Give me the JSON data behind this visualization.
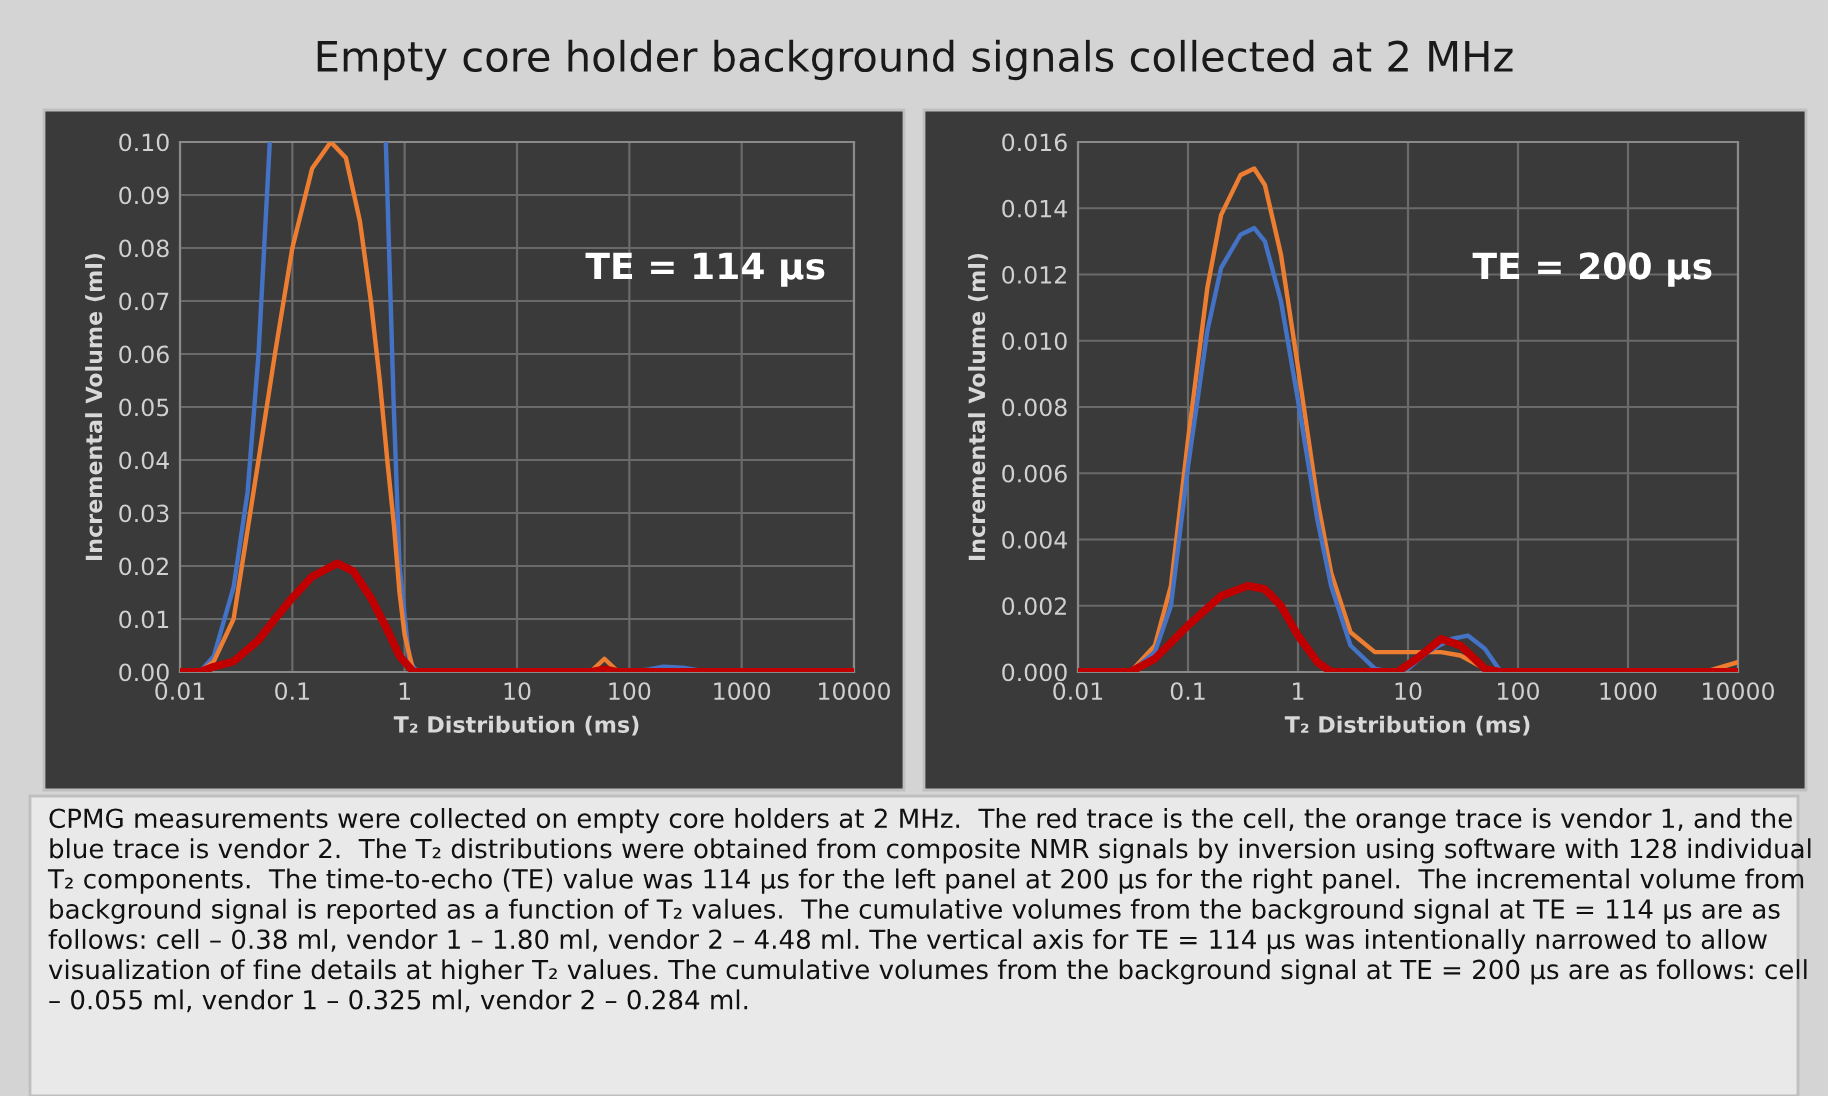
{
  "chart_data": [
    {
      "type": "line",
      "title": "Empty core holder background signals collected at 2 MHz",
      "xlabel": "T₂ Distribution (ms)",
      "ylabel": "Incremental Volume (ml)",
      "log": "x",
      "grid": true,
      "marker": "none",
      "line_style": "solid",
      "xlim": [
        0.01,
        10000
      ],
      "xticks": [
        0.01,
        0.1,
        1,
        10,
        100,
        1000,
        10000
      ],
      "ylim": [
        0,
        0.1
      ],
      "yticks": [
        {
          "value": 0,
          "label": "0.00"
        },
        {
          "value": 0.01,
          "label": "0.01"
        },
        {
          "value": 0.02,
          "label": "0.02"
        },
        {
          "value": 0.03,
          "label": "0.03"
        },
        {
          "value": 0.04,
          "label": "0.04"
        },
        {
          "value": 0.05,
          "label": "0.05"
        },
        {
          "value": 0.06,
          "label": "0.06"
        },
        {
          "value": 0.07,
          "label": "0.07"
        },
        {
          "value": 0.08,
          "label": "0.08"
        },
        {
          "value": 0.09,
          "label": "0.09"
        },
        {
          "value": 0.1,
          "label": "0.10"
        }
      ],
      "annotations": [
        "TE = 114 μs"
      ],
      "series": [
        {
          "color": "#4472c4",
          "x": [
            0.01,
            0.015,
            0.02,
            0.03,
            0.04,
            0.05,
            0.063,
            0.2,
            0.68,
            0.8,
            0.9,
            1.1,
            1.3,
            10,
            100,
            150,
            200,
            300,
            500,
            10000
          ],
          "values": [
            0,
            0,
            0.003,
            0.016,
            0.034,
            0.06,
            0.1,
            null,
            0.1,
            0.05,
            0.02,
            0.002,
            0,
            0,
            0,
            0.0005,
            0.001,
            0.0008,
            0,
            0
          ]
        },
        {
          "color": "#ed7d31",
          "x": [
            0.01,
            0.015,
            0.02,
            0.03,
            0.05,
            0.07,
            0.1,
            0.15,
            0.22,
            0.3,
            0.4,
            0.5,
            0.6,
            0.7,
            0.8,
            0.9,
            1.0,
            1.2,
            45,
            60,
            80,
            10000
          ],
          "values": [
            0,
            0,
            0.002,
            0.01,
            0.04,
            0.06,
            0.08,
            0.095,
            0.1,
            0.097,
            0.085,
            0.07,
            0.055,
            0.04,
            0.028,
            0.015,
            0.007,
            0,
            0,
            0.0025,
            0,
            0
          ]
        },
        {
          "color": "#c00000",
          "x": [
            0.01,
            0.015,
            0.02,
            0.03,
            0.05,
            0.07,
            0.1,
            0.15,
            0.25,
            0.35,
            0.5,
            0.7,
            0.9,
            1.2,
            45,
            60,
            80,
            10000
          ],
          "values": [
            0,
            0,
            0.001,
            0.002,
            0.006,
            0.01,
            0.014,
            0.018,
            0.0205,
            0.019,
            0.014,
            0.008,
            0.003,
            0,
            0,
            0.0005,
            0,
            0
          ]
        }
      ]
    },
    {
      "type": "line",
      "xlabel": "T₂ Distribution (ms)",
      "ylabel": "Incremental Volume (ml)",
      "log": "x",
      "grid": true,
      "marker": "none",
      "line_style": "solid",
      "xlim": [
        0.01,
        10000
      ],
      "xticks": [
        0.01,
        0.1,
        1,
        10,
        100,
        1000,
        10000
      ],
      "ylim": [
        0,
        0.016
      ],
      "yticks": [
        {
          "value": 0,
          "label": "0.000"
        },
        {
          "value": 0.002,
          "label": "0.002"
        },
        {
          "value": 0.004,
          "label": "0.004"
        },
        {
          "value": 0.006,
          "label": "0.006"
        },
        {
          "value": 0.008,
          "label": "0.008"
        },
        {
          "value": 0.01,
          "label": "0.010"
        },
        {
          "value": 0.012,
          "label": "0.012"
        },
        {
          "value": 0.014,
          "label": "0.014"
        },
        {
          "value": 0.016,
          "label": "0.016"
        }
      ],
      "annotations": [
        "TE = 200 μs",
        "CPMG measurements were collected on empty core holders at 2 MHz.  The red trace is the cell, the orange trace is vendor 1, and the blue trace is vendor 2.  The T₂ distributions were obtained from composite NMR signals by inversion using software with 128 individual T₂ components.  The time-to-echo (TE) value was 114 μs for the left panel at 200 μs for the right panel.  The incremental volume from background signal is reported as a function of T₂ values.  The cumulative volumes from the background signal at TE = 114 μs are as follows: cell – 0.38 ml, vendor 1 – 1.80 ml, vendor 2 – 4.48 ml. The vertical axis for TE = 114 μs was intentionally narrowed to allow visualization of fine details at higher T₂ values. The cumulative volumes from the background signal at TE = 200 μs are as follows: cell – 0.055 ml, vendor 1 – 0.325 ml, vendor 2 – 0.284 ml."
      ],
      "series": [
        {
          "color": "#ed7d31",
          "x": [
            0.01,
            0.03,
            0.05,
            0.07,
            0.1,
            0.15,
            0.2,
            0.3,
            0.4,
            0.5,
            0.7,
            1,
            1.5,
            2,
            3,
            5,
            10,
            20,
            30,
            50,
            70,
            5000,
            10000
          ],
          "values": [
            0,
            0,
            0.0008,
            0.0026,
            0.007,
            0.0116,
            0.0138,
            0.015,
            0.0152,
            0.0147,
            0.0126,
            0.0092,
            0.0052,
            0.003,
            0.0012,
            0.0006,
            0.0006,
            0.0006,
            0.0005,
            0.0001,
            0,
            0,
            0.0003
          ]
        },
        {
          "color": "#4472c4",
          "x": [
            0.01,
            0.03,
            0.05,
            0.07,
            0.1,
            0.15,
            0.2,
            0.3,
            0.4,
            0.5,
            0.7,
            1,
            1.5,
            2,
            3,
            5,
            7,
            10,
            15,
            25,
            35,
            50,
            70,
            10000
          ],
          "values": [
            0,
            0,
            0.0006,
            0.002,
            0.0062,
            0.0103,
            0.0122,
            0.0132,
            0.0134,
            0.013,
            0.0112,
            0.0082,
            0.0046,
            0.0026,
            0.0008,
            0.0001,
            0,
            0.0001,
            0.0006,
            0.001,
            0.0011,
            0.0007,
            0,
            0
          ]
        },
        {
          "color": "#c00000",
          "x": [
            0.01,
            0.03,
            0.05,
            0.1,
            0.2,
            0.35,
            0.5,
            0.7,
            1,
            1.5,
            2,
            8,
            12,
            20,
            30,
            50,
            70,
            10000
          ],
          "values": [
            0,
            0,
            0.0004,
            0.0014,
            0.0023,
            0.0026,
            0.0025,
            0.002,
            0.0011,
            0.0003,
            0,
            0,
            0.0004,
            0.001,
            0.0008,
            0.0001,
            0,
            0
          ]
        }
      ]
    }
  ]
}
